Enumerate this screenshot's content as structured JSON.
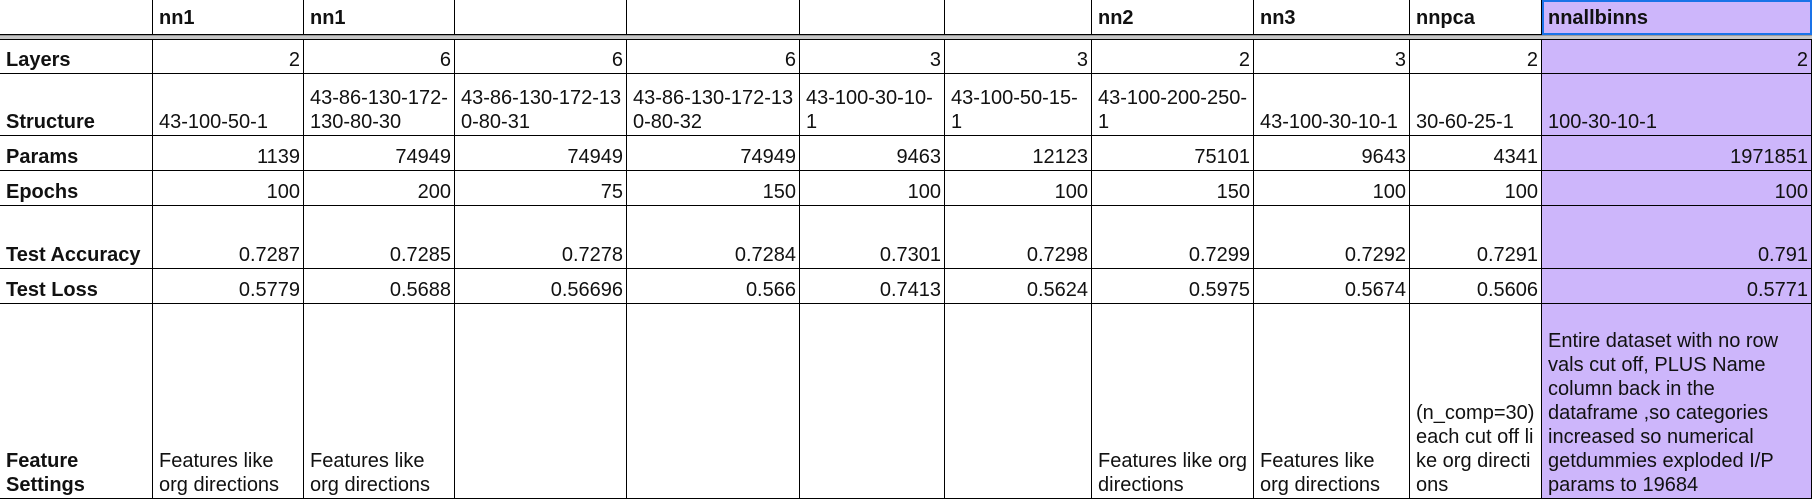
{
  "header": {
    "col_b": "nn1",
    "col_c": "nn1",
    "col_d": "",
    "col_e": "",
    "col_f": "",
    "col_g": "",
    "col_h": "nn2",
    "col_i": "nn3",
    "col_j": "nnpca",
    "col_k": "nnallbinns"
  },
  "rows": {
    "layers": {
      "label": "Layers",
      "values": [
        "2",
        "6",
        "6",
        "6",
        "3",
        "3",
        "2",
        "3",
        "2",
        "2"
      ]
    },
    "structure": {
      "label": "Structure",
      "values": [
        "43-100-50-1",
        "43-86-130-172-130-80-30",
        "43-86-130-172-130-80-31",
        "43-86-130-172-130-80-32",
        "43-100-30-10-1",
        "43-100-50-15-1",
        "43-100-200-250-1",
        "43-100-30-10-1",
        "30-60-25-1",
        "100-30-10-1"
      ]
    },
    "params": {
      "label": "Params",
      "values": [
        "1139",
        "74949",
        "74949",
        "74949",
        "9463",
        "12123",
        "75101",
        "9643",
        "4341",
        "1971851"
      ]
    },
    "epochs": {
      "label": "Epochs",
      "values": [
        "100",
        "200",
        "75",
        "150",
        "100",
        "100",
        "150",
        "100",
        "100",
        "100"
      ]
    },
    "test_accuracy": {
      "label": "Test Accuracy",
      "values": [
        "0.7287",
        "0.7285",
        "0.7278",
        "0.7284",
        "0.7301",
        "0.7298",
        "0.7299",
        "0.7292",
        "0.7291",
        "0.791"
      ]
    },
    "test_loss": {
      "label": "Test Loss",
      "values": [
        "0.5779",
        "0.5688",
        "0.56696",
        "0.566",
        "0.7413",
        "0.5624",
        "0.5975",
        "0.5674",
        "0.5606",
        "0.5771"
      ]
    },
    "feature_settings": {
      "label": "Feature Settings",
      "values": [
        "Features like org directions",
        "Features like org directions",
        "",
        "",
        "",
        "",
        "Features like org directions",
        "Features like org directions",
        "(n_comp=30) each cut off like org directions",
        "Entire dataset with no row vals cut off, PLUS Name column back in the dataframe ,so categories increased so numerical getdummies exploded I/P params to 19684"
      ]
    }
  },
  "colors": {
    "highlight": "#cdb6fb",
    "selection": "#1a73e8",
    "freeze_bar": "#c6c6c6"
  }
}
